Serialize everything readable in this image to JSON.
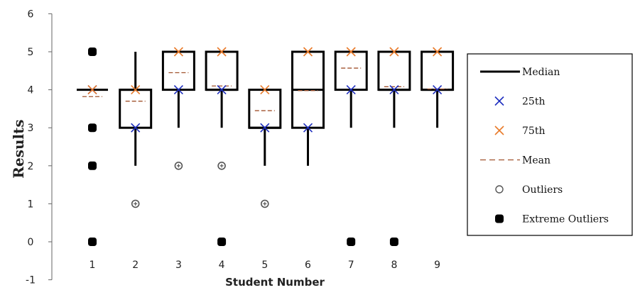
{
  "chart_data": {
    "type": "boxplot",
    "xlabel": "Student Number",
    "ylabel": "Results",
    "ylim": [
      -1,
      6
    ],
    "yticks": [
      -1,
      0,
      1,
      2,
      3,
      4,
      5,
      6
    ],
    "categories": [
      "1",
      "2",
      "3",
      "4",
      "5",
      "6",
      "7",
      "8",
      "9"
    ],
    "grid": false,
    "legend_position": "right",
    "colors": {
      "median": "#000000",
      "q1": "#1f2fbf",
      "q3": "#e87a2a",
      "mean": "#a0522d",
      "outlier": "#555555",
      "extreme": "#000000",
      "box": "#000000"
    },
    "students": [
      {
        "student": "1",
        "min": 4,
        "q1": 4,
        "median": 4,
        "q3": 4,
        "max": 4,
        "mean": 3.82,
        "outliers": [],
        "extreme_outliers": [
          5,
          3,
          2,
          0
        ]
      },
      {
        "student": "2",
        "min": 2,
        "q1": 3,
        "median": 4,
        "q3": 4,
        "max": 5,
        "mean": 3.7,
        "outliers": [
          1
        ],
        "extreme_outliers": []
      },
      {
        "student": "3",
        "min": 3,
        "q1": 4,
        "median": 5,
        "q3": 5,
        "max": 5,
        "mean": 4.45,
        "outliers": [
          2
        ],
        "extreme_outliers": []
      },
      {
        "student": "4",
        "min": 3,
        "q1": 4,
        "median": 4,
        "q3": 5,
        "max": 5,
        "mean": 4.1,
        "outliers": [
          2
        ],
        "extreme_outliers": [
          0
        ]
      },
      {
        "student": "5",
        "min": 2,
        "q1": 3,
        "median": 3,
        "q3": 4,
        "max": 4,
        "mean": 3.45,
        "outliers": [
          1
        ],
        "extreme_outliers": []
      },
      {
        "student": "6",
        "min": 2,
        "q1": 3,
        "median": 4,
        "q3": 5,
        "max": 5,
        "mean": 3.98,
        "outliers": [],
        "extreme_outliers": []
      },
      {
        "student": "7",
        "min": 3,
        "q1": 4,
        "median": 5,
        "q3": 5,
        "max": 5,
        "mean": 4.57,
        "outliers": [],
        "extreme_outliers": [
          0
        ]
      },
      {
        "student": "8",
        "min": 3,
        "q1": 4,
        "median": 4,
        "q3": 5,
        "max": 5,
        "mean": 4.08,
        "outliers": [],
        "extreme_outliers": [
          0
        ]
      },
      {
        "student": "9",
        "min": 3,
        "q1": 4,
        "median": 4,
        "q3": 5,
        "max": 5,
        "mean": 4.02,
        "outliers": [],
        "extreme_outliers": []
      }
    ],
    "legend": [
      {
        "key": "median",
        "label": "Median"
      },
      {
        "key": "q1",
        "label": "25th"
      },
      {
        "key": "q3",
        "label": "75th"
      },
      {
        "key": "mean",
        "label": "Mean"
      },
      {
        "key": "outlier",
        "label": "Outliers"
      },
      {
        "key": "extreme",
        "label": "Extreme Outliers"
      }
    ]
  }
}
